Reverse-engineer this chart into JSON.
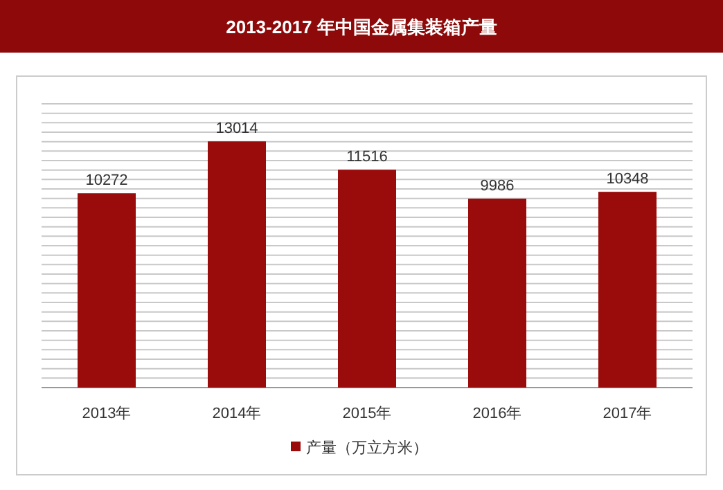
{
  "chart_data": {
    "type": "bar",
    "title": "2013-2017 年中国金属集装箱产量",
    "categories": [
      "2013年",
      "2014年",
      "2015年",
      "2016年",
      "2017年"
    ],
    "series": [
      {
        "name": "产量（万立方米）",
        "color": "#9a0b0b",
        "values": [
          10272,
          13014,
          11516,
          9986,
          10348
        ]
      }
    ],
    "data_labels": true,
    "ylim": [
      0,
      15000
    ],
    "yticks": [
      {
        "value": 0,
        "label": null
      },
      {
        "value": 500,
        "label": null
      },
      {
        "value": 1000,
        "label": null
      },
      {
        "value": 1500,
        "label": null
      },
      {
        "value": 2000,
        "label": null
      },
      {
        "value": 2500,
        "label": null
      },
      {
        "value": 3000,
        "label": null
      },
      {
        "value": 3500,
        "label": null
      },
      {
        "value": 4000,
        "label": null
      },
      {
        "value": 4500,
        "label": null
      },
      {
        "value": 5000,
        "label": null
      },
      {
        "value": 5500,
        "label": null
      },
      {
        "value": 6000,
        "label": null
      },
      {
        "value": 6500,
        "label": null
      },
      {
        "value": 7000,
        "label": null
      },
      {
        "value": 7500,
        "label": null
      },
      {
        "value": 8000,
        "label": null
      },
      {
        "value": 8500,
        "label": null
      },
      {
        "value": 9000,
        "label": null
      },
      {
        "value": 9500,
        "label": null
      },
      {
        "value": 10000,
        "label": null
      },
      {
        "value": 10500,
        "label": null
      },
      {
        "value": 11000,
        "label": null
      },
      {
        "value": 11500,
        "label": null
      },
      {
        "value": 12000,
        "label": null
      },
      {
        "value": 12500,
        "label": null
      },
      {
        "value": 13000,
        "label": null
      },
      {
        "value": 13500,
        "label": null
      },
      {
        "value": 14000,
        "label": null
      },
      {
        "value": 14500,
        "label": null
      },
      {
        "value": 15000,
        "label": null
      }
    ],
    "tick_labels": "x",
    "grid": "y",
    "legend": "bottom"
  }
}
